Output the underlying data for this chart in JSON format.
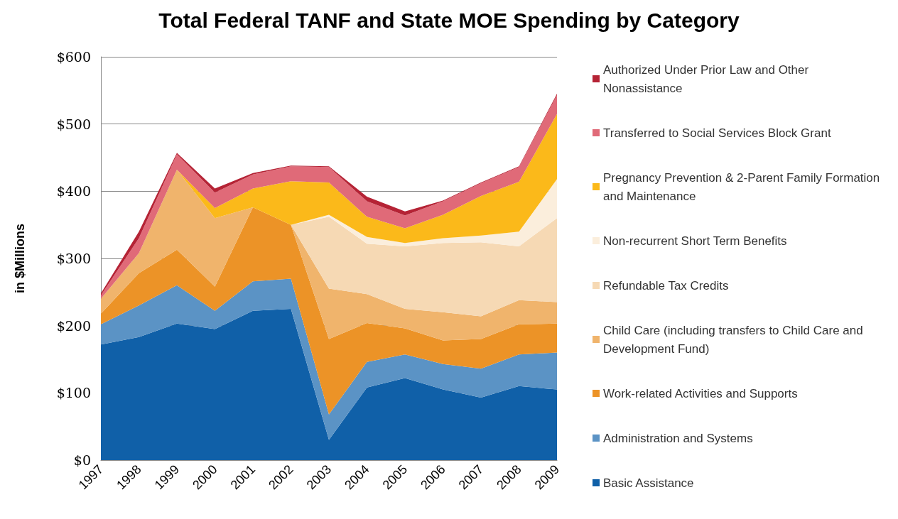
{
  "chart_data": {
    "type": "area",
    "title": "Total Federal TANF and State MOE Spending by Category",
    "ylabel": "in $Millions",
    "categories": [
      "1997",
      "1998",
      "1999",
      "2000",
      "2001",
      "2002",
      "2003",
      "2004",
      "2005",
      "2006",
      "2007",
      "2008",
      "2009"
    ],
    "stacked": true,
    "ylim": [
      0,
      600
    ],
    "yticks": [
      {
        "value": 0,
        "label": "$0"
      },
      {
        "value": 100,
        "label": "$100"
      },
      {
        "value": 200,
        "label": "$200"
      },
      {
        "value": 300,
        "label": "$300"
      },
      {
        "value": 400,
        "label": "$400"
      },
      {
        "value": 500,
        "label": "$500"
      },
      {
        "value": 600,
        "label": "$600"
      }
    ],
    "grid": "y",
    "legend": "right",
    "series": [
      {
        "name": "Basic Assistance",
        "color": "#1060a8",
        "values": [
          172,
          183,
          203,
          195,
          222,
          225,
          30,
          108,
          122,
          105,
          93,
          110,
          105
        ]
      },
      {
        "name": "Administration and Systems",
        "color": "#5b93c5",
        "values": [
          30,
          47,
          57,
          27,
          44,
          45,
          38,
          38,
          35,
          38,
          43,
          47,
          55
        ]
      },
      {
        "name": "Work-related Activities and Supports",
        "color": "#ec9327",
        "values": [
          16,
          48,
          53,
          36,
          110,
          80,
          112,
          58,
          39,
          35,
          44,
          45,
          43
        ]
      },
      {
        "name": "Child Care (including transfers to Child Care and Development Fund)",
        "color": "#f0b46c",
        "values": [
          22,
          30,
          119,
          102,
          0,
          0,
          75,
          43,
          29,
          42,
          34,
          36,
          32
        ]
      },
      {
        "name": "Refundable Tax Credits",
        "color": "#f6d9b4",
        "values": [
          0,
          0,
          0,
          0,
          0,
          0,
          107,
          75,
          93,
          103,
          110,
          80,
          125
        ]
      },
      {
        "name": "Non-recurrent Short Term Benefits",
        "color": "#fbeedc",
        "values": [
          0,
          0,
          0,
          0,
          0,
          0,
          3,
          10,
          5,
          7,
          10,
          22,
          58
        ]
      },
      {
        "name": "Pregnancy Prevention & 2-Parent Family Formation and Maintenance",
        "color": "#fbb91a",
        "values": [
          0,
          0,
          0,
          15,
          28,
          65,
          48,
          30,
          22,
          35,
          59,
          74,
          97
        ]
      },
      {
        "name": "Transferred to Social Services Block Grant",
        "color": "#e06a78",
        "values": [
          5,
          22,
          23,
          23,
          21,
          22,
          23,
          23,
          19,
          20,
          19,
          22,
          28
        ]
      },
      {
        "name": "Authorized Under Prior Law and Other Nonassistance",
        "color": "#b52335",
        "values": [
          3,
          10,
          2,
          6,
          2,
          1,
          1,
          7,
          6,
          1,
          1,
          1,
          2
        ]
      }
    ]
  }
}
